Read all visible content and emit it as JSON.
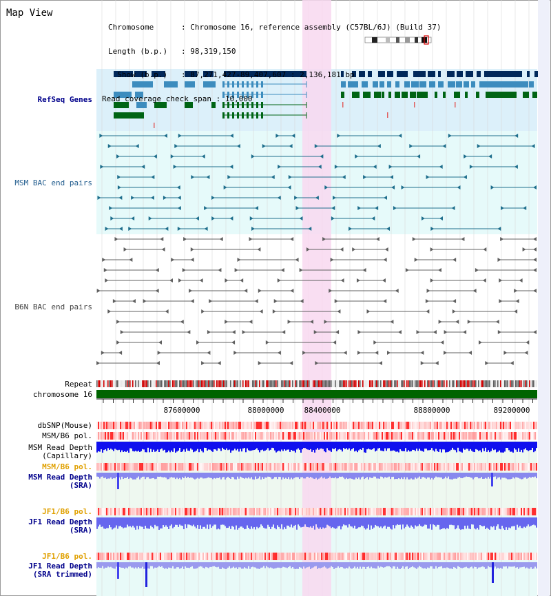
{
  "app": {
    "title": "Map View"
  },
  "info": {
    "lines": [
      {
        "key": "Chromosome      ",
        "value": ": Chromosome 16, reference assembly (C57BL/6J) (Build 37)"
      },
      {
        "key": "Length (b.p.)   ",
        "value": ": 98,319,150"
      },
      {
        "key": "  Show (b.p.)   ",
        "value": ": 87,271,427-89,407,607 : 2,136,181 bp"
      },
      {
        "key": "Read coverage check span ",
        "value": ": 10,000"
      }
    ]
  },
  "tracks": {
    "refseq": "RefSeq Genes",
    "msm_bac": "MSM BAC end pairs",
    "b6n_bac": "B6N BAC end pairs",
    "repeat": "Repeat",
    "chromosome": "chromosome 16",
    "dbsnp": "dbSNP(Mouse)",
    "msm_b6_pol": "MSM/B6 pol.",
    "msm_depth_cap_1": "MSM Read Depth",
    "msm_depth_cap_2": "(Capillary)",
    "msm_b6_pol_sra": "MSM/B6 pol.",
    "msm_depth_sra_1": "MSM Read Depth",
    "msm_depth_sra_2": "(SRA)",
    "jf1_b6_pol": "JF1/B6 pol.",
    "jf1_depth_sra_1": "JF1 Read Depth",
    "jf1_depth_sra_2": "(SRA)",
    "jf1_b6_pol_2": "JF1/B6 pol.",
    "jf1_depth_trim_1": "JF1 Read Depth",
    "jf1_depth_trim_2": "(SRA trimmed)"
  },
  "ruler": {
    "ticks": [
      "87600000",
      "88000000",
      "88400000",
      "88800000",
      "89200000"
    ]
  },
  "colors": {
    "refseq_bg": "#dcf0fa",
    "bac_bg": "#e6fafa",
    "highlight": "#f8d8f0",
    "navy": "#00285a",
    "steel": "#3c8cbe",
    "green": "#006414",
    "teal": "#1e6e8c",
    "gray": "#606060",
    "chromosome": "#006400",
    "depth": "#2a2aee",
    "depth_light": "#8888ee",
    "label_blue": "#00008b",
    "label_orange": "#e0a000"
  }
}
